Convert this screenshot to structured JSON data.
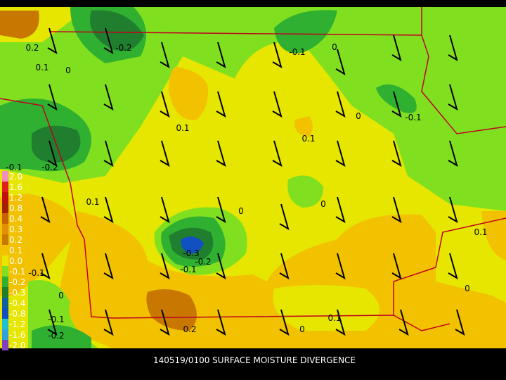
{
  "caption": "140519/0100 SURFACE MOISTURE DIVERGENCE",
  "legend": {
    "labels": [
      "2.0",
      "1.6",
      "1.2",
      "0.8",
      "0.4",
      "0.3",
      "0.2",
      "0.1",
      "0.0",
      "-0.1",
      "-0.2",
      "-0.3",
      "-0.4",
      "-0.8",
      "-1.2",
      "-1.6",
      "-2.0"
    ],
    "colors": [
      "#f090c0",
      "#e02020",
      "#c01010",
      "#a02000",
      "#c86400",
      "#e09000",
      "#c87800",
      "#f2c200",
      "#e6e600",
      "#80e020",
      "#30b030",
      "#1f7f2f",
      "#1060a0",
      "#1050c0",
      "#20c0d0",
      "#30a0e0",
      "#8040c0"
    ]
  },
  "contour_labels": [
    "0.2",
    "0.1",
    "0",
    "-0.2",
    "-0.1",
    "0",
    "0.1",
    "0.1",
    "0",
    "-0.1",
    "-0.1",
    "-0.2",
    "0.1",
    "0",
    "0",
    "-0.3",
    "-0.2",
    "-0.1",
    "0.1",
    "-0.1",
    "0",
    "0",
    "-0.1",
    "-0.2",
    "0.2",
    "0",
    "0.1"
  ]
}
